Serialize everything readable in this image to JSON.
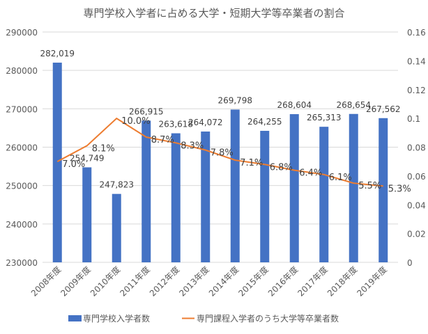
{
  "chart_data": {
    "type": "bar+line",
    "title": "専門学校入学者に占める大学・短期大学等卒業者の割合",
    "categories": [
      "2008年度",
      "2009年度",
      "2010年度",
      "2011年度",
      "2012年度",
      "2013年度",
      "2014年度",
      "2015年度",
      "2016年度",
      "2017年度",
      "2018年度",
      "2019年度"
    ],
    "series": [
      {
        "name": "専門学校入学者数",
        "type": "bar",
        "axis": "left",
        "color": "#4472C4",
        "values": [
          282019,
          254749,
          247823,
          266915,
          263618,
          264072,
          269798,
          264255,
          268604,
          265313,
          268654,
          267562
        ],
        "labels": [
          "282,019",
          "254,749",
          "247,823",
          "266,915",
          "263,618",
          "264,072",
          "269,798",
          "264,255",
          "268,604",
          "265,313",
          "268,654",
          "267,562"
        ]
      },
      {
        "name": "専門課程入学者のうち大学等卒業者数",
        "type": "line",
        "axis": "right",
        "color": "#ED7D31",
        "values": [
          0.07,
          0.081,
          0.1,
          0.087,
          0.083,
          0.078,
          0.071,
          0.068,
          0.064,
          0.061,
          0.055,
          0.053
        ],
        "labels": [
          "7.0%",
          "8.1%",
          "10.0%",
          "8.7%",
          "8.3%",
          "7.8%",
          "7.1%",
          "6.8%",
          "6.4%",
          "6.1%",
          "5.5%",
          "5.3%"
        ]
      }
    ],
    "y_left": {
      "range": [
        230000,
        290000
      ],
      "ticks": [
        "230000",
        "240000",
        "250000",
        "260000",
        "270000",
        "280000",
        "290000"
      ]
    },
    "y_right": {
      "range": [
        0,
        0.16
      ],
      "ticks": [
        "0",
        "0.02",
        "0.04",
        "0.06",
        "0.08",
        "0.1",
        "0.12",
        "0.14",
        "0.16"
      ]
    },
    "grid": true,
    "legend_position": "bottom"
  }
}
